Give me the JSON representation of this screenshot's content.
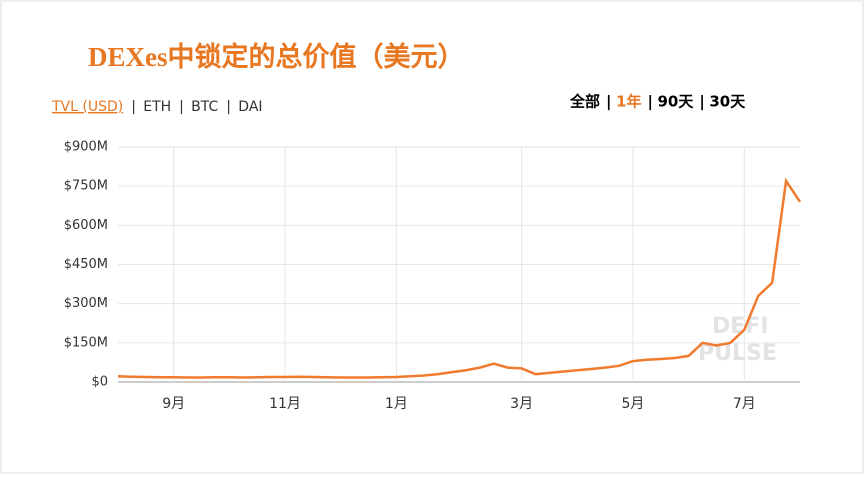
{
  "chart_data": {
    "type": "line",
    "title": "DEXes中锁定的总价值（美元）",
    "metric_tabs": [
      "TVL (USD)",
      "ETH",
      "BTC",
      "DAI"
    ],
    "range_tabs": [
      "全部",
      "1年",
      "90天",
      "30天"
    ],
    "watermark": [
      "DEFI",
      "PULSE"
    ],
    "categories": [
      null,
      null,
      null,
      null,
      "9月",
      null,
      null,
      null,
      null,
      null,
      null,
      null,
      "11月",
      null,
      null,
      null,
      null,
      null,
      null,
      null,
      "1月",
      null,
      null,
      null,
      null,
      null,
      null,
      null,
      null,
      "3月",
      null,
      null,
      null,
      null,
      null,
      null,
      null,
      "5月",
      null,
      null,
      null,
      null,
      null,
      null,
      null,
      "7月",
      null,
      null,
      null,
      null
    ],
    "series": [
      {
        "name": "TVL (USD)",
        "color": "#f07a2e",
        "values": [
          22000000,
          20000000,
          19000000,
          18000000,
          18000000,
          17000000,
          17000000,
          18000000,
          18000000,
          17000000,
          18000000,
          19000000,
          19000000,
          20000000,
          19000000,
          18000000,
          17000000,
          17000000,
          17000000,
          18000000,
          19000000,
          22000000,
          25000000,
          30000000,
          38000000,
          45000000,
          55000000,
          70000000,
          55000000,
          52000000,
          30000000,
          35000000,
          40000000,
          45000000,
          50000000,
          55000000,
          62000000,
          80000000,
          85000000,
          88000000,
          92000000,
          100000000,
          150000000,
          140000000,
          150000000,
          200000000,
          330000000,
          380000000,
          770000000,
          690000000
        ]
      }
    ],
    "ylim": [
      0,
      900000000
    ],
    "yticks": [
      {
        "value": 0,
        "label": "$0"
      },
      {
        "value": 150000000,
        "label": "$150M"
      },
      {
        "value": 300000000,
        "label": "$300M"
      },
      {
        "value": 450000000,
        "label": "$450M"
      },
      {
        "value": 600000000,
        "label": "$600M"
      },
      {
        "value": 750000000,
        "label": "$750M"
      },
      {
        "value": 900000000,
        "label": "$900M"
      }
    ],
    "grid": true
  }
}
